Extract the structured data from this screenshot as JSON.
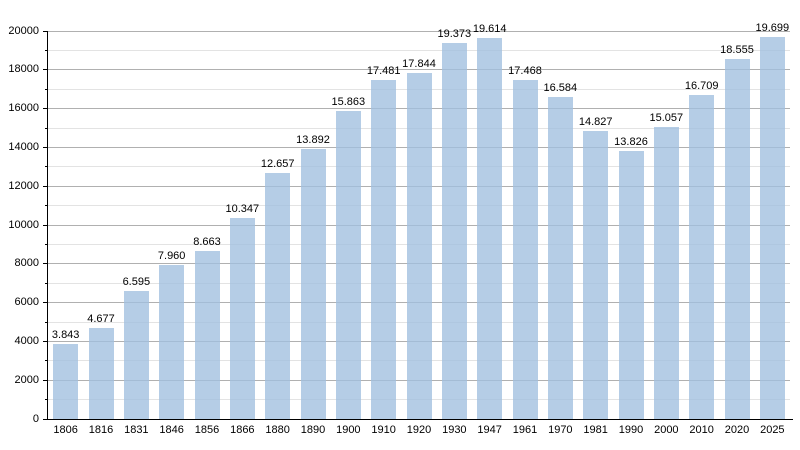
{
  "chart_data": {
    "type": "bar",
    "title": "",
    "xlabel": "",
    "ylabel": "",
    "categories": [
      "1806",
      "1816",
      "1831",
      "1846",
      "1856",
      "1866",
      "1880",
      "1890",
      "1900",
      "1910",
      "1920",
      "1930",
      "1947",
      "1961",
      "1970",
      "1981",
      "1990",
      "2000",
      "2010",
      "2020",
      "2025"
    ],
    "values": [
      3843,
      4677,
      6595,
      7960,
      8663,
      10347,
      12657,
      13892,
      15863,
      17481,
      17844,
      19373,
      19614,
      17468,
      16584,
      14827,
      13826,
      15057,
      16709,
      18555,
      19699
    ],
    "value_labels": [
      "3.843",
      "4.677",
      "6.595",
      "7.960",
      "8.663",
      "10.347",
      "12.657",
      "13.892",
      "15.863",
      "17.481",
      "17.844",
      "19.373",
      "19.614",
      "17.468",
      "16.584",
      "14.827",
      "13.826",
      "15.057",
      "16.709",
      "18.555",
      "19.699"
    ],
    "ylim": [
      0,
      20000
    ],
    "y_major_step": 2000,
    "y_minor_step": 1000,
    "y_tick_labels": [
      "0",
      "2000",
      "4000",
      "6000",
      "8000",
      "10000",
      "12000",
      "14000",
      "16000",
      "18000",
      "20000"
    ],
    "grid": "on",
    "legend": "none",
    "colors": {
      "bar_fill_rgba": "rgba(160, 191, 223, 0.78)",
      "major_grid": "#b0b0b0",
      "minor_grid": "#e3e3e3",
      "axis": "#000000",
      "text": "#000000",
      "background": "#ffffff"
    }
  }
}
